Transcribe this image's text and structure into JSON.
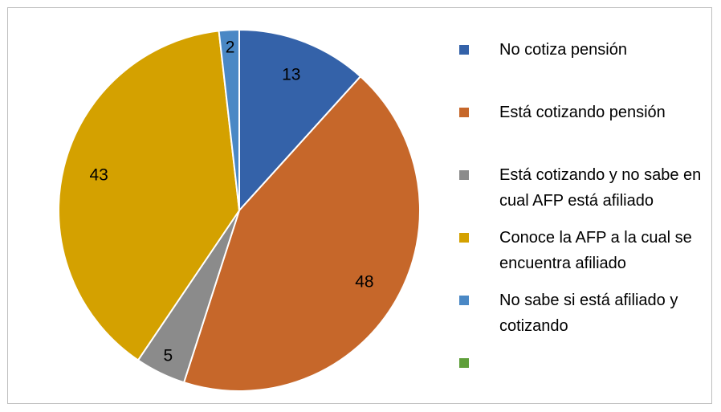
{
  "chart_data": {
    "type": "pie",
    "categories": [
      "No cotiza pensión",
      "Está cotizando pensión",
      "Está cotizando y no sabe en cual AFP está afiliado",
      "Conoce la AFP a la cual se encuentra afiliado",
      "No sabe si está afiliado y cotizando",
      null
    ],
    "values": [
      13,
      48,
      5,
      43,
      2,
      0
    ],
    "colors": [
      "#3462a9",
      "#c6672a",
      "#8b8b8b",
      "#d4a100",
      "#4a88c5",
      "#5f9f3a"
    ],
    "legend": "right"
  }
}
